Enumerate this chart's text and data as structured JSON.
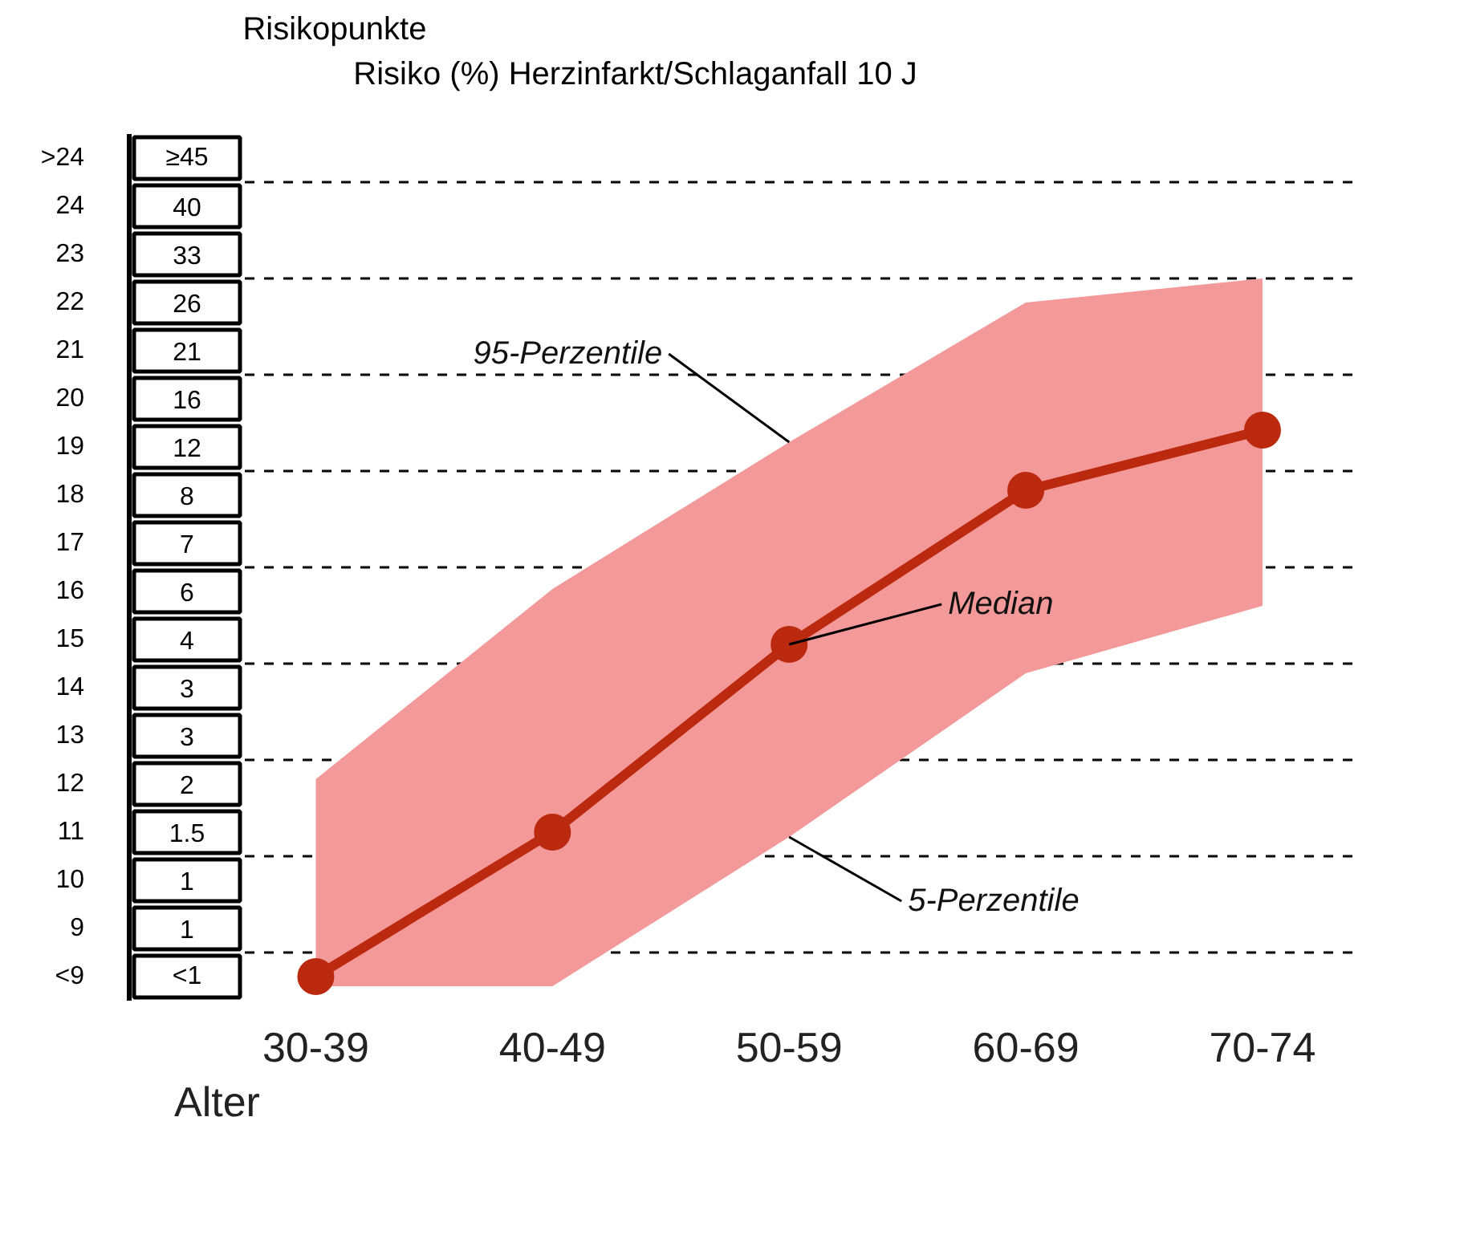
{
  "chart_data": {
    "type": "line",
    "ylabel": "Risikopunkte",
    "xlabel": "Alter",
    "categories": [
      "30-39",
      "40-49",
      "50-59",
      "60-69",
      "70-74"
    ],
    "ylim": [
      7.5,
      25.5
    ],
    "yticks": [
      {
        "value": 8,
        "label": "<9"
      },
      9,
      10,
      11,
      12,
      13,
      14,
      15,
      16,
      17,
      18,
      19,
      20,
      21,
      22,
      23,
      24,
      {
        "value": 25,
        "label": ">24"
      }
    ],
    "series": [
      {
        "color": "#bb2a0e",
        "marker": "circle",
        "line_style": "solid",
        "values": [
          8.0,
          11.0,
          14.9,
          18.1,
          19.35
        ],
        "lower": [
          7.8,
          7.8,
          10.9,
          14.3,
          15.7
        ],
        "upper": [
          12.1,
          16.05,
          19.1,
          22.0,
          22.5
        ]
      }
    ],
    "ref_lines": [
      {
        "axis": "y",
        "value": 8.5,
        "color": "#000000",
        "line_style": "dashed"
      },
      {
        "axis": "y",
        "value": 10.5,
        "color": "#000000",
        "line_style": "dashed"
      },
      {
        "axis": "y",
        "value": 12.5,
        "color": "#000000",
        "line_style": "dashed"
      },
      {
        "axis": "y",
        "value": 14.5,
        "color": "#000000",
        "line_style": "dashed"
      },
      {
        "axis": "y",
        "value": 16.5,
        "color": "#000000",
        "line_style": "dashed"
      },
      {
        "axis": "y",
        "value": 18.5,
        "color": "#000000",
        "line_style": "dashed"
      },
      {
        "axis": "y",
        "value": 20.5,
        "color": "#000000",
        "line_style": "dashed"
      },
      {
        "axis": "y",
        "value": 22.5,
        "color": "#000000",
        "line_style": "dashed"
      },
      {
        "axis": "y",
        "value": 24.5,
        "color": "#000000",
        "line_style": "dashed"
      }
    ],
    "annotations": [
      "Risiko (%) Herzinfarkt/Schlaganfall 10 J",
      "≥45",
      "40",
      "33",
      "26",
      "21",
      "16",
      "12",
      "8",
      "7",
      "6",
      "4",
      "3",
      "3",
      "2",
      "1.5",
      "1",
      "1",
      "<1",
      {
        "text": "95-Perzentile",
        "x": "50-59",
        "y": 19.1
      },
      {
        "text": "Median",
        "x": "50-59",
        "y": 14.9
      },
      {
        "text": "5-Perzentile",
        "x": "50-59",
        "y": 10.9
      }
    ],
    "grid": false
  }
}
